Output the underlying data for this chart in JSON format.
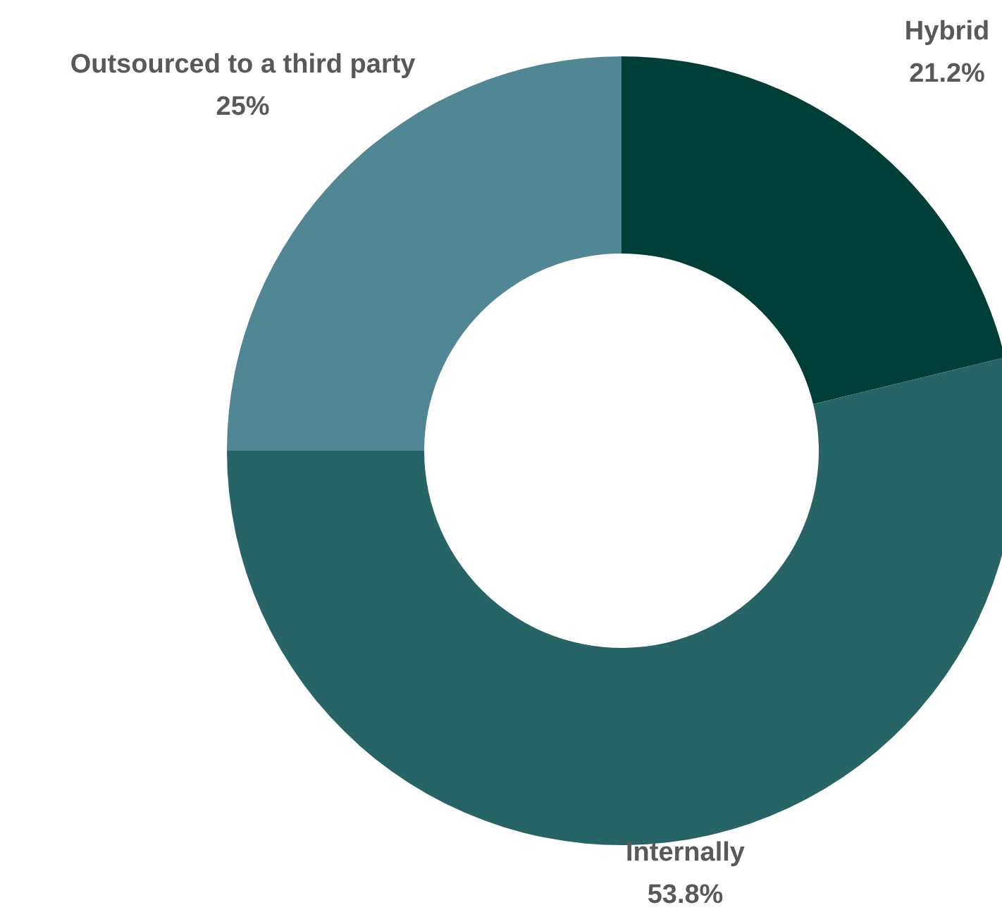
{
  "chart_data": {
    "type": "donut",
    "categories": [
      "Hybrid",
      "Internally",
      "Outsourced to a third party"
    ],
    "values": [
      21.2,
      53.8,
      25
    ],
    "colors": [
      "#003f38",
      "#276466",
      "#518795"
    ],
    "value_labels": [
      "21.2%",
      "53.8%",
      "25%"
    ],
    "legend": false
  }
}
